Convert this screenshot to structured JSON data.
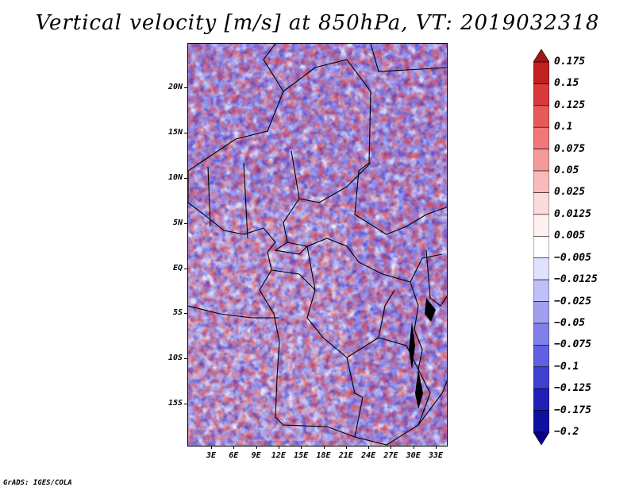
{
  "title": "Vertical velocity [m/s] at 850hPa, VT: 2019032318",
  "footer": "GrADS: IGES/COLA",
  "map": {
    "field": "vertical velocity",
    "level": "850hPa",
    "valid_time": "2019032318",
    "units": "m/s",
    "lat_range": [
      -19.5,
      24.5
    ],
    "lon_range": [
      0,
      35.5
    ]
  },
  "axes": {
    "y_ticks": [
      "20N",
      "15N",
      "10N",
      "5N",
      "EQ",
      "5S",
      "10S",
      "15S"
    ],
    "x_ticks": [
      "3E",
      "6E",
      "9E",
      "12E",
      "15E",
      "18E",
      "21E",
      "24E",
      "27E",
      "30E",
      "33E"
    ]
  },
  "legend": {
    "labels": [
      "0.175",
      "0.15",
      "0.125",
      "0.1",
      "0.075",
      "0.05",
      "0.025",
      "0.0125",
      "0.005",
      "−0.005",
      "−0.0125",
      "−0.025",
      "−0.05",
      "−0.075",
      "−0.1",
      "−0.125",
      "−0.175",
      "−0.2"
    ],
    "colors": [
      "#a01818",
      "#c02020",
      "#d83a3a",
      "#e85a5a",
      "#f07878",
      "#f59a9a",
      "#f8baba",
      "#fcdada",
      "#fff0f0",
      "#ffffff",
      "#e0e0ff",
      "#c0c0f8",
      "#a0a0f0",
      "#8080e8",
      "#6060e0",
      "#4040d0",
      "#2020b8",
      "#1010a0",
      "#080090"
    ]
  }
}
